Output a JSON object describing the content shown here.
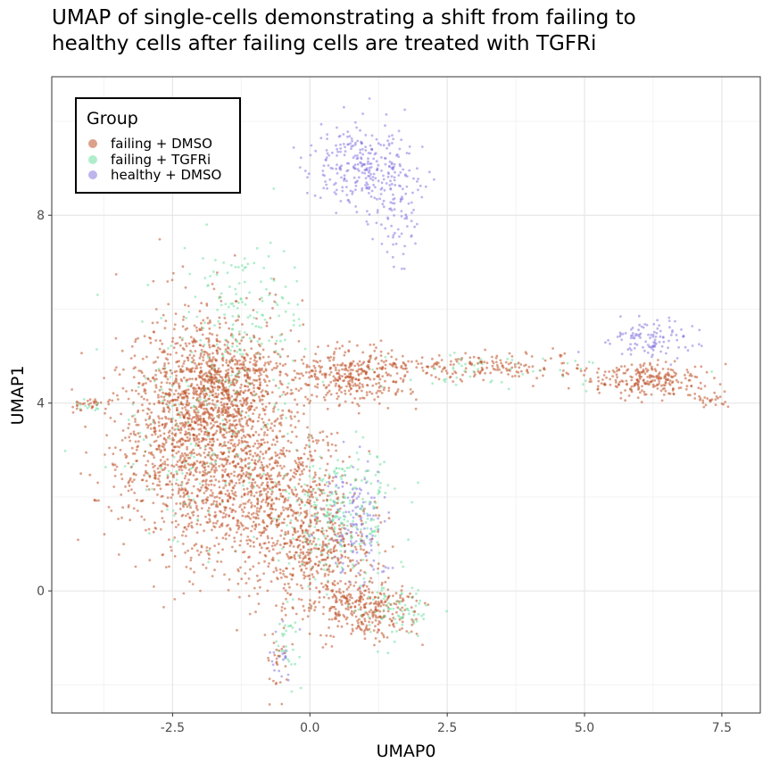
{
  "chart_data": {
    "type": "scatter",
    "title_line1": "UMAP of single-cells demonstrating a shift from failing to",
    "title_line2": "healthy cells after failing cells are treated with TGFRi",
    "xlabel": "UMAP0",
    "ylabel": "UMAP1",
    "xlim": [
      -4.7,
      8.2
    ],
    "ylim": [
      -2.6,
      10.95
    ],
    "x_ticks": [
      -2.5,
      0.0,
      2.5,
      5.0,
      7.5
    ],
    "x_tick_labels": [
      "-2.5",
      "0.0",
      "2.5",
      "5.0",
      "7.5"
    ],
    "y_ticks": [
      0,
      4,
      8
    ],
    "y_tick_labels": [
      "0",
      "4",
      "8"
    ],
    "grid": true,
    "legend": {
      "title": "Group",
      "position": "top-left",
      "entries": [
        {
          "label": "failing + DMSO",
          "color": "#c0532a"
        },
        {
          "label": "failing + TGFRi",
          "color": "#6fe0a0"
        },
        {
          "label": "healthy + DMSO",
          "color": "#8878e0"
        }
      ]
    },
    "series": [
      {
        "name": "failing + DMSO",
        "color": "#c0532a",
        "clusters": [
          {
            "x": -2.0,
            "y": 3.3,
            "sx": 0.75,
            "sy": 1.2,
            "n": 1600
          },
          {
            "x": -1.6,
            "y": 4.5,
            "sx": 0.6,
            "sy": 0.55,
            "n": 500
          },
          {
            "x": -0.6,
            "y": 1.9,
            "sx": 0.6,
            "sy": 0.9,
            "n": 650
          },
          {
            "x": 0.2,
            "y": 0.8,
            "sx": 0.5,
            "sy": 0.6,
            "n": 350
          },
          {
            "x": 1.0,
            "y": -0.4,
            "sx": 0.45,
            "sy": 0.3,
            "n": 300
          },
          {
            "x": 0.8,
            "y": 4.6,
            "sx": 0.65,
            "sy": 0.3,
            "n": 380
          },
          {
            "x": 3.2,
            "y": 4.8,
            "sx": 1.0,
            "sy": 0.15,
            "n": 160
          },
          {
            "x": 6.2,
            "y": 4.5,
            "sx": 0.5,
            "sy": 0.18,
            "n": 240
          },
          {
            "x": -0.6,
            "y": -1.5,
            "sx": 0.1,
            "sy": 0.3,
            "n": 25
          },
          {
            "x": -4.0,
            "y": 3.95,
            "sx": 0.18,
            "sy": 0.08,
            "n": 30
          },
          {
            "x": 7.3,
            "y": 4.05,
            "sx": 0.18,
            "sy": 0.1,
            "n": 25
          }
        ]
      },
      {
        "name": "failing + TGFRi",
        "color": "#6fe0a0",
        "clusters": [
          {
            "x": 0.5,
            "y": 1.6,
            "sx": 0.5,
            "sy": 0.7,
            "n": 260
          },
          {
            "x": -1.2,
            "y": 5.8,
            "sx": 0.55,
            "sy": 0.8,
            "n": 140
          },
          {
            "x": -1.8,
            "y": 3.5,
            "sx": 0.8,
            "sy": 1.2,
            "n": 180
          },
          {
            "x": 1.6,
            "y": -0.4,
            "sx": 0.35,
            "sy": 0.3,
            "n": 80
          },
          {
            "x": 3.5,
            "y": 4.7,
            "sx": 1.2,
            "sy": 0.2,
            "n": 50
          },
          {
            "x": -0.4,
            "y": -1.1,
            "sx": 0.12,
            "sy": 0.4,
            "n": 30
          },
          {
            "x": -4.0,
            "y": 3.95,
            "sx": 0.15,
            "sy": 0.08,
            "n": 12
          }
        ]
      },
      {
        "name": "healthy + DMSO",
        "color": "#8878e0",
        "clusters": [
          {
            "x": 1.0,
            "y": 9.0,
            "sx": 0.45,
            "sy": 0.45,
            "n": 300
          },
          {
            "x": 1.6,
            "y": 7.9,
            "sx": 0.2,
            "sy": 0.5,
            "n": 60
          },
          {
            "x": 0.8,
            "y": 1.5,
            "sx": 0.3,
            "sy": 0.6,
            "n": 150
          },
          {
            "x": 6.2,
            "y": 5.4,
            "sx": 0.4,
            "sy": 0.2,
            "n": 110
          },
          {
            "x": -0.5,
            "y": -1.4,
            "sx": 0.1,
            "sy": 0.3,
            "n": 20
          }
        ]
      }
    ]
  }
}
